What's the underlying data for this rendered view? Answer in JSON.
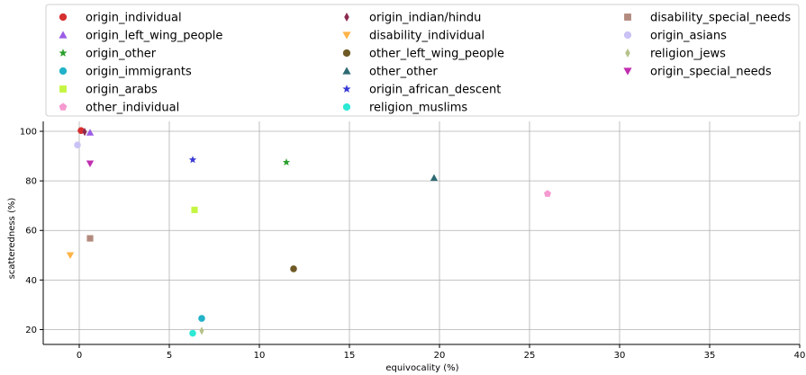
{
  "chart_data": {
    "type": "scatter",
    "xlabel": "equivocality (%)",
    "ylabel": "scatteredness (%)",
    "xlim": [
      -2,
      40
    ],
    "ylim": [
      14,
      104
    ],
    "xticks": [
      0,
      5,
      10,
      15,
      20,
      25,
      30,
      35,
      40
    ],
    "yticks": [
      20,
      40,
      60,
      80,
      100
    ],
    "grid": true,
    "legend_position": "top",
    "series": [
      {
        "name": "origin_individual",
        "color": "#d62f2f",
        "marker": "circle",
        "points": [
          [
            0.1,
            100.3
          ]
        ]
      },
      {
        "name": "origin_left_wing_people",
        "color": "#9b5de5",
        "marker": "triangle-up",
        "points": [
          [
            0.6,
            99.5
          ]
        ]
      },
      {
        "name": "origin_other",
        "color": "#2ca02c",
        "marker": "star",
        "points": [
          [
            11.5,
            87.5
          ]
        ]
      },
      {
        "name": "origin_immigrants",
        "color": "#22b2c9",
        "marker": "circle",
        "points": [
          [
            6.8,
            24.5
          ]
        ]
      },
      {
        "name": "origin_arabs",
        "color": "#c5f542",
        "marker": "square",
        "points": [
          [
            6.4,
            68.3
          ]
        ]
      },
      {
        "name": "other_individual",
        "color": "#f59ad0",
        "marker": "pentagon",
        "points": [
          [
            26.0,
            74.8
          ]
        ]
      },
      {
        "name": "origin_indian/hindu",
        "color": "#8b2a4f",
        "marker": "diamond",
        "points": [
          [
            0.3,
            99.8
          ]
        ]
      },
      {
        "name": "disability_individual",
        "color": "#ffb347",
        "marker": "triangle-down",
        "points": [
          [
            -0.5,
            50.0
          ]
        ]
      },
      {
        "name": "other_left_wing_people",
        "color": "#6f5a26",
        "marker": "circle",
        "points": [
          [
            11.9,
            44.5
          ]
        ]
      },
      {
        "name": "other_other",
        "color": "#2f6b73",
        "marker": "triangle-up",
        "points": [
          [
            19.7,
            81.2
          ]
        ]
      },
      {
        "name": "origin_african_descent",
        "color": "#3a3ad6",
        "marker": "star",
        "points": [
          [
            6.3,
            88.5
          ]
        ]
      },
      {
        "name": "religion_muslims",
        "color": "#2de8d5",
        "marker": "circle",
        "points": [
          [
            6.3,
            18.5
          ]
        ]
      },
      {
        "name": "disability_special_needs",
        "color": "#b38a7e",
        "marker": "square",
        "points": [
          [
            0.6,
            56.8
          ]
        ]
      },
      {
        "name": "origin_asians",
        "color": "#c9c2f5",
        "marker": "circle",
        "points": [
          [
            -0.1,
            94.5
          ]
        ]
      },
      {
        "name": "religion_jews",
        "color": "#b5c28a",
        "marker": "diamond",
        "points": [
          [
            6.8,
            19.5
          ]
        ]
      },
      {
        "name": "origin_special_needs",
        "color": "#c12fb0",
        "marker": "triangle-down",
        "points": [
          [
            0.6,
            87.0
          ]
        ]
      }
    ]
  }
}
